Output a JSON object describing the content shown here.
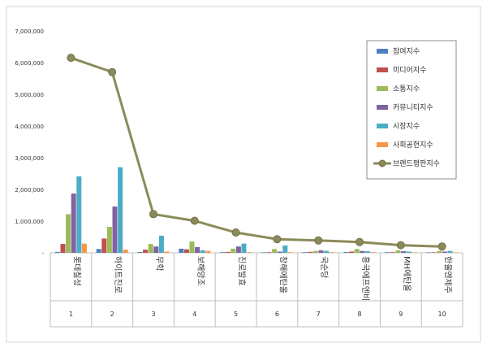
{
  "chart_data": {
    "type": "bar",
    "title": "",
    "xlabel": "",
    "ylabel": "",
    "ylim": [
      0,
      7000000
    ],
    "yticks": [
      0,
      1000000,
      2000000,
      3000000,
      4000000,
      5000000,
      6000000,
      7000000
    ],
    "ytick_labels": [
      "-",
      "1,000,000",
      "2,000,000",
      "3,000,000",
      "4,000,000",
      "5,000,000",
      "6,000,000",
      "7,000,000"
    ],
    "grid": false,
    "legend_position": "right",
    "categories": [
      "롯데칠성",
      "하이트진로",
      "무학",
      "보해양조",
      "진로발효",
      "창해에탄올",
      "국순당",
      "흥국에프엔비",
      "MH에탄올",
      "한울엔제주"
    ],
    "rank_labels": [
      "1",
      "2",
      "3",
      "4",
      "5",
      "6",
      "7",
      "8",
      "9",
      "10"
    ],
    "series": [
      {
        "name": "참여지수",
        "kind": "bar",
        "color": "#4f7fc0",
        "values": [
          30000,
          120000,
          25000,
          130000,
          20000,
          15000,
          20000,
          25000,
          20000,
          15000
        ]
      },
      {
        "name": "미디어지수",
        "kind": "bar",
        "color": "#c0504d",
        "values": [
          280000,
          450000,
          100000,
          110000,
          30000,
          20000,
          30000,
          40000,
          20000,
          15000
        ]
      },
      {
        "name": "소통지수",
        "kind": "bar",
        "color": "#9bbb59",
        "values": [
          1220000,
          820000,
          280000,
          360000,
          130000,
          120000,
          60000,
          120000,
          80000,
          60000
        ]
      },
      {
        "name": "커뮤니티지수",
        "kind": "bar",
        "color": "#8064a2",
        "values": [
          1870000,
          1460000,
          200000,
          180000,
          200000,
          40000,
          80000,
          60000,
          50000,
          40000
        ]
      },
      {
        "name": "시장지수",
        "kind": "bar",
        "color": "#4bacc6",
        "values": [
          2410000,
          2700000,
          540000,
          80000,
          290000,
          230000,
          60000,
          50000,
          40000,
          60000
        ]
      },
      {
        "name": "사회공헌지수",
        "kind": "bar",
        "color": "#f79646",
        "values": [
          290000,
          100000,
          40000,
          60000,
          20000,
          20000,
          20000,
          20000,
          15000,
          15000
        ]
      },
      {
        "name": "브랜드평판지수",
        "kind": "line",
        "color": "#8b8b5a",
        "values": [
          6150000,
          5700000,
          1220000,
          1010000,
          640000,
          430000,
          390000,
          340000,
          240000,
          200000
        ]
      }
    ]
  }
}
